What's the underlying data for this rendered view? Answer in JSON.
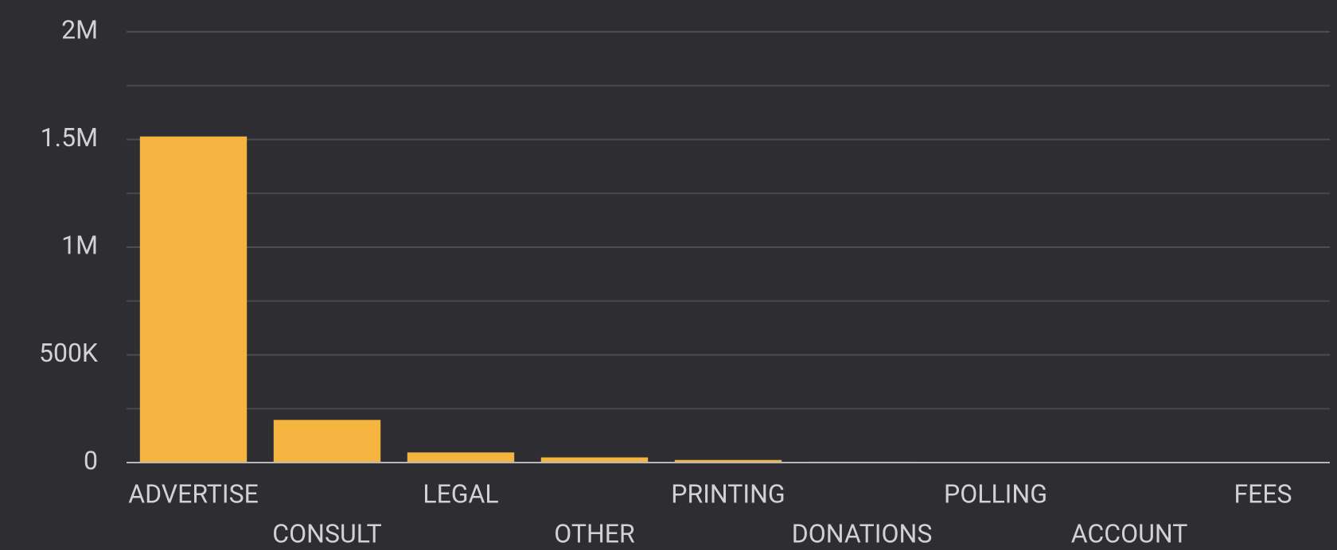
{
  "chart_data": {
    "type": "bar",
    "categories": [
      "ADVERTISE",
      "CONSULT",
      "LEGAL",
      "OTHER",
      "PRINTING",
      "DONATIONS",
      "POLLING",
      "ACCOUNT",
      "FEES"
    ],
    "values": [
      1514000,
      198000,
      47000,
      24000,
      12000,
      4000,
      2000,
      1500,
      500
    ],
    "color": "#f5b440",
    "ylim": [
      0,
      2000000
    ],
    "yticks": [
      0,
      {
        "value": 500000,
        "label": "500K"
      },
      {
        "value": 1000000,
        "label": "1M"
      },
      {
        "value": 1500000,
        "label": "1.5M"
      },
      {
        "value": 2000000,
        "label": "2M"
      }
    ],
    "minor_yticks": [
      250000,
      750000,
      1250000,
      1750000
    ],
    "grid": true
  }
}
